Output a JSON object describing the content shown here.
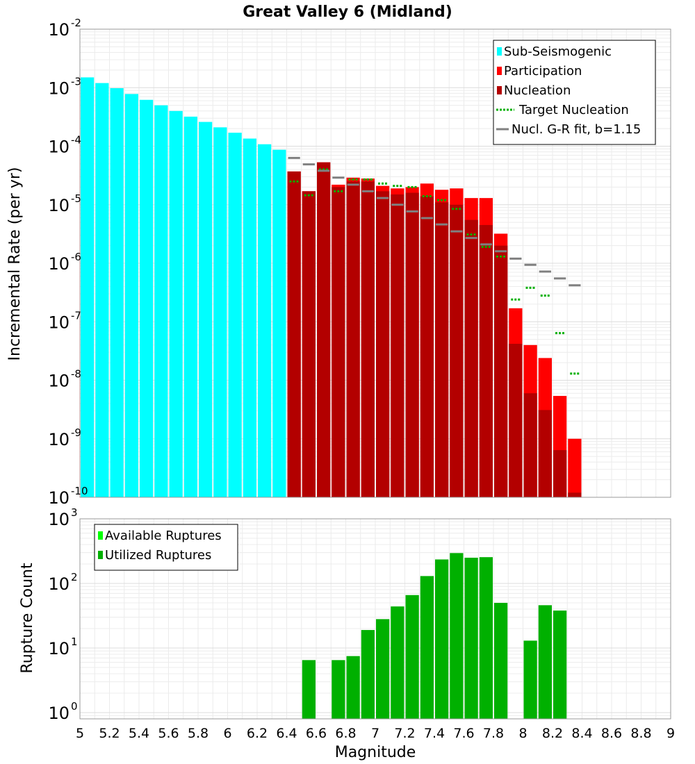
{
  "title": "Great Valley 6 (Midland)",
  "chart_data": [
    {
      "type": "bar",
      "ylabel": "Incremental Rate (per yr)",
      "xlabel": "",
      "y_scale": "log",
      "ylim": [
        1e-10,
        0.01
      ],
      "xlim": [
        5,
        9
      ],
      "bin_width": 0.1,
      "y_tick_exponents": [
        -10,
        -9,
        -8,
        -7,
        -6,
        -5,
        -4,
        -3,
        -2
      ],
      "grid": true,
      "legend_position": "top-right",
      "legend": [
        {
          "label": "Sub-Seismogenic",
          "color": "#00ffff",
          "kind": "box"
        },
        {
          "label": "Participation",
          "color": "#ff0000",
          "kind": "box"
        },
        {
          "label": "Nucleation",
          "color": "#b30000",
          "kind": "box"
        },
        {
          "label": "Target Nucleation",
          "color": "#00b000",
          "kind": "dotted"
        },
        {
          "label": "Nucl. G-R fit, b=1.15",
          "color": "#808080",
          "kind": "line"
        }
      ],
      "series": [
        {
          "name": "Sub-Seismogenic",
          "color": "#00ffff",
          "x": [
            5.05,
            5.15,
            5.25,
            5.35,
            5.45,
            5.55,
            5.65,
            5.75,
            5.85,
            5.95,
            6.05,
            6.15,
            6.25,
            6.35
          ],
          "values": [
            0.0015,
            0.0012,
            0.00098,
            0.00078,
            0.00062,
            0.0005,
            0.0004,
            0.00032,
            0.00026,
            0.00021,
            0.00017,
            0.000135,
            0.000108,
            8.7e-05
          ]
        },
        {
          "name": "Participation",
          "color": "#ff0000",
          "x": [
            6.45,
            6.55,
            6.65,
            6.75,
            6.85,
            6.95,
            7.05,
            7.15,
            7.25,
            7.35,
            7.45,
            7.55,
            7.65,
            7.75,
            7.85,
            7.95,
            8.05,
            8.15,
            8.25,
            8.35
          ],
          "values": [
            3.7e-05,
            1.7e-05,
            5.3e-05,
            2.2e-05,
            2.9e-05,
            2.8e-05,
            2.1e-05,
            1.9e-05,
            2e-05,
            2.3e-05,
            1.8e-05,
            1.9e-05,
            1.3e-05,
            1.3e-05,
            3.2e-06,
            1.7e-07,
            4e-08,
            2.4e-08,
            5.4e-09,
            1e-09
          ]
        },
        {
          "name": "Nucleation",
          "color": "#b30000",
          "x": [
            6.45,
            6.55,
            6.65,
            6.75,
            6.85,
            6.95,
            7.05,
            7.15,
            7.25,
            7.35,
            7.45,
            7.55,
            7.65,
            7.75,
            7.85,
            7.95,
            8.05,
            8.15,
            8.25,
            8.35
          ],
          "values": [
            3.7e-05,
            1.7e-05,
            5.3e-05,
            2e-05,
            2.5e-05,
            2.5e-05,
            1.7e-05,
            1.5e-05,
            1.6e-05,
            1.4e-05,
            1.1e-05,
            1e-05,
            5.5e-06,
            4.5e-06,
            2e-06,
            4.2e-08,
            6e-09,
            3.1e-09,
            6.4e-10,
            1.2e-10
          ]
        },
        {
          "name": "Target Nucleation",
          "color": "#00b000",
          "x": [
            6.45,
            6.55,
            6.65,
            6.75,
            6.85,
            6.95,
            7.05,
            7.15,
            7.25,
            7.35,
            7.45,
            7.55,
            7.65,
            7.75,
            7.85,
            7.95,
            8.05,
            8.15,
            8.25,
            8.35
          ],
          "values": [
            2.5e-05,
            1.45e-05,
            4e-05,
            1.7e-05,
            2.7e-05,
            2.7e-05,
            2.3e-05,
            2.1e-05,
            2e-05,
            1.4e-05,
            1.2e-05,
            8.5e-06,
            3.1e-06,
            1.9e-06,
            1.3e-06,
            2.4e-07,
            3.8e-07,
            2.8e-07,
            6.4e-08,
            1.3e-08
          ]
        },
        {
          "name": "Nucl. G-R fit, b=1.15",
          "color": "#808080",
          "x": [
            6.45,
            6.55,
            6.65,
            6.75,
            6.85,
            6.95,
            7.05,
            7.15,
            7.25,
            7.35,
            7.45,
            7.55,
            7.65,
            7.75,
            7.85,
            7.95,
            8.05,
            8.15,
            8.25,
            8.35
          ],
          "values": [
            6.3e-05,
            4.9e-05,
            3.8e-05,
            2.9e-05,
            2.2e-05,
            1.7e-05,
            1.3e-05,
            1e-05,
            7.7e-06,
            5.9e-06,
            4.6e-06,
            3.5e-06,
            2.7e-06,
            2.1e-06,
            1.6e-06,
            1.2e-06,
            9.4e-07,
            7.2e-07,
            5.5e-07,
            4.2e-07
          ]
        }
      ]
    },
    {
      "type": "bar",
      "ylabel": "Rupture Count",
      "xlabel": "Magnitude",
      "y_scale": "log",
      "ylim": [
        0.8,
        1000
      ],
      "xlim": [
        5,
        9
      ],
      "bin_width": 0.1,
      "y_tick_exponents": [
        0,
        1,
        2,
        3
      ],
      "x_ticks": [
        "5",
        "5.2",
        "5.4",
        "5.6",
        "5.8",
        "6",
        "6.2",
        "6.4",
        "6.6",
        "6.8",
        "7",
        "7.2",
        "7.4",
        "7.6",
        "7.8",
        "8",
        "8.2",
        "8.4",
        "8.6",
        "8.8",
        "9"
      ],
      "grid": true,
      "legend_position": "top-left",
      "legend": [
        {
          "label": "Available Ruptures",
          "color": "#00ff00",
          "kind": "box"
        },
        {
          "label": "Utilized Ruptures",
          "color": "#00b000",
          "kind": "box"
        }
      ],
      "series": [
        {
          "name": "Utilized Ruptures",
          "color": "#00b000",
          "x": [
            6.55,
            6.75,
            6.85,
            6.95,
            7.05,
            7.15,
            7.25,
            7.35,
            7.45,
            7.55,
            7.65,
            7.75,
            7.85,
            8.05,
            8.15,
            8.25
          ],
          "values": [
            6.5,
            6.5,
            7.5,
            19,
            28,
            44,
            66,
            130,
            235,
            295,
            250,
            255,
            50,
            13,
            46,
            38
          ]
        }
      ]
    }
  ]
}
